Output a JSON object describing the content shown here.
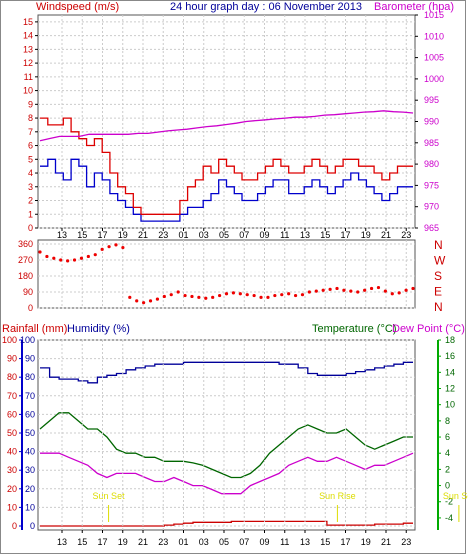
{
  "chart_data": {
    "type": "line",
    "title": "24 hour graph day : 06 November 2013",
    "x_tick_labels": [
      "13",
      "15",
      "17",
      "19",
      "21",
      "23",
      "01",
      "03",
      "05",
      "07",
      "09",
      "11",
      "13",
      "15",
      "17",
      "19",
      "21",
      "23"
    ],
    "panels": [
      {
        "id": "wind",
        "left_axis_label": "Windspeed (m/s)",
        "right_axis_label": "Barometer (hpa)",
        "left_ticks": [
          0,
          1,
          2,
          3,
          4,
          5,
          6,
          7,
          8,
          9,
          10,
          11,
          12,
          13,
          14,
          15
        ],
        "right_ticks": [
          965,
          970,
          975,
          980,
          985,
          990,
          995,
          1000,
          1005,
          1010,
          1015
        ],
        "ylim_left": [
          0,
          15.5
        ],
        "ylim_right": [
          965,
          1015
        ],
        "series": [
          {
            "name": "Windspeed (m/s)",
            "axis": "left",
            "color": "#0000cc",
            "style": "step",
            "values": [
              4.5,
              5,
              4,
              3.5,
              5,
              4.5,
              3,
              4,
              3.5,
              2.5,
              2,
              1.5,
              1,
              0.5,
              0.5,
              0.5,
              0.5,
              0.5,
              1,
              1.5,
              1.5,
              2,
              2.5,
              3.5,
              3,
              2.5,
              2,
              2,
              2.5,
              3,
              3.5,
              3.5,
              2.5,
              2.5,
              3,
              3.5,
              3,
              2.5,
              3,
              3.5,
              4,
              3.5,
              3,
              2.5,
              2,
              2.5,
              3,
              3,
              3
            ]
          },
          {
            "name": "Windspeed gust",
            "axis": "left",
            "color": "#dd0000",
            "style": "step",
            "values": [
              8,
              7.5,
              7.5,
              8,
              7,
              6.5,
              6,
              6.5,
              5.5,
              4,
              3,
              2.5,
              1.5,
              1,
              1,
              1,
              1,
              1,
              2,
              3,
              3.5,
              4.5,
              4,
              5,
              4.5,
              4,
              3.5,
              3.5,
              4,
              4.5,
              5,
              4.5,
              4,
              4,
              4.5,
              5,
              4.5,
              4,
              4.5,
              5,
              5,
              4.5,
              4.5,
              4,
              3.5,
              4,
              4.5,
              4.5,
              4.5
            ]
          },
          {
            "name": "Barometer (hpa)",
            "axis": "right",
            "color": "#cc00cc",
            "style": "line",
            "values": [
              985.5,
              986,
              986.5,
              986.5,
              986.5,
              987,
              987,
              987,
              987,
              987,
              987.2,
              987.2,
              987.5,
              987.8,
              988,
              988.2,
              988.5,
              988.8,
              989,
              989.3,
              989.6,
              990,
              990.2,
              990.4,
              990.6,
              990.8,
              991,
              991,
              991.2,
              991.5,
              991.6,
              991.8,
              992,
              992.2,
              992.3,
              992.5,
              992.3,
              992.2,
              992
            ]
          }
        ]
      },
      {
        "id": "direction",
        "right_axis_labels": [
          "N",
          "W",
          "S",
          "E",
          "N"
        ],
        "left_ticks": [
          0,
          90,
          180,
          270,
          360
        ],
        "ylim_left": [
          0,
          360
        ],
        "series": [
          {
            "name": "Wind direction",
            "axis": "left",
            "color": "#ee0000",
            "style": "points",
            "values": [
              315,
              290,
              280,
              270,
              265,
              270,
              280,
              290,
              300,
              330,
              345,
              355,
              340,
              60,
              40,
              30,
              40,
              50,
              65,
              75,
              90,
              70,
              65,
              60,
              55,
              60,
              70,
              80,
              85,
              80,
              75,
              70,
              60,
              60,
              70,
              75,
              80,
              70,
              75,
              90,
              95,
              100,
              105,
              110,
              100,
              95,
              90,
              100,
              110,
              115,
              95,
              80,
              85,
              100,
              110
            ]
          }
        ]
      },
      {
        "id": "temperature",
        "left_axis_label_1": "Rainfall (mm)",
        "left_axis_label_2": "Humidity (%)",
        "right_axis_label_1": "Temperature (°C)",
        "right_axis_label_2": "Dew Point (°C)",
        "rain_ticks": [
          0,
          10,
          20,
          30,
          40,
          50,
          60,
          70,
          80,
          90,
          100
        ],
        "humidity_ticks": [
          0,
          10,
          20,
          30,
          40,
          50,
          60,
          70,
          80,
          90,
          100
        ],
        "temp_ticks": [
          -4,
          -2,
          0,
          2,
          4,
          6,
          8,
          10,
          12,
          14,
          16,
          18
        ],
        "ylim_left": [
          0,
          100
        ],
        "ylim_right": [
          -5,
          18
        ],
        "markers": [
          {
            "label": "Sun Set",
            "hour_index": 2.3
          },
          {
            "label": "Sun Rise",
            "hour_index": 13.6
          },
          {
            "label": "Sun Set",
            "hour_index": 19.6
          }
        ],
        "series": [
          {
            "name": "Humidity (%)",
            "axis": "left",
            "color": "#000099",
            "style": "step",
            "values": [
              85,
              80,
              79,
              79,
              78,
              77,
              80,
              81,
              82,
              84,
              85,
              86,
              87,
              87,
              87,
              88,
              88,
              88,
              88,
              88,
              88,
              88,
              88,
              88,
              88,
              87,
              87,
              85,
              82,
              81,
              81,
              81,
              82,
              83,
              84,
              85,
              86,
              87,
              88,
              88
            ]
          },
          {
            "name": "Temperature (°C)",
            "axis": "right",
            "color": "#006600",
            "style": "line",
            "values": [
              7,
              8,
              9,
              9,
              8,
              7,
              7,
              6,
              4.5,
              4,
              4,
              3.5,
              3.5,
              3,
              3,
              3,
              2.8,
              2.5,
              2,
              1.5,
              1,
              1,
              1.5,
              2.5,
              4,
              5,
              6,
              7,
              7.5,
              7,
              6.5,
              6.5,
              7,
              6,
              5,
              4.5,
              5,
              5.5,
              6,
              6
            ]
          },
          {
            "name": "Dew Point (°C)",
            "axis": "right",
            "color": "#cc00cc",
            "style": "line",
            "values": [
              4,
              4,
              4,
              3.5,
              3,
              2.5,
              1.5,
              1,
              1.5,
              1.5,
              1.5,
              1,
              0.5,
              0.5,
              1,
              0.5,
              0,
              0,
              -0.5,
              -1,
              -1,
              -1,
              0,
              0.5,
              1,
              1.5,
              2.5,
              3,
              3.5,
              3,
              3,
              3.5,
              3,
              2.5,
              2,
              2.5,
              2.5,
              3,
              3.5,
              4
            ]
          },
          {
            "name": "Rainfall (mm)",
            "axis": "left",
            "color": "#cc0000",
            "style": "step",
            "values": [
              0,
              0,
              0,
              0,
              0,
              0,
              0,
              0,
              0,
              0,
              0,
              0,
              0,
              0.5,
              1,
              1.5,
              2,
              2,
              2,
              2,
              2.5,
              2.5,
              2.5,
              2.5,
              2.5,
              2.5,
              2.5,
              2.5,
              2.5,
              2.5,
              0.5,
              0.5,
              0.5,
              0.5,
              0.5,
              1,
              1,
              1,
              1.5,
              1.5
            ]
          }
        ]
      }
    ]
  }
}
